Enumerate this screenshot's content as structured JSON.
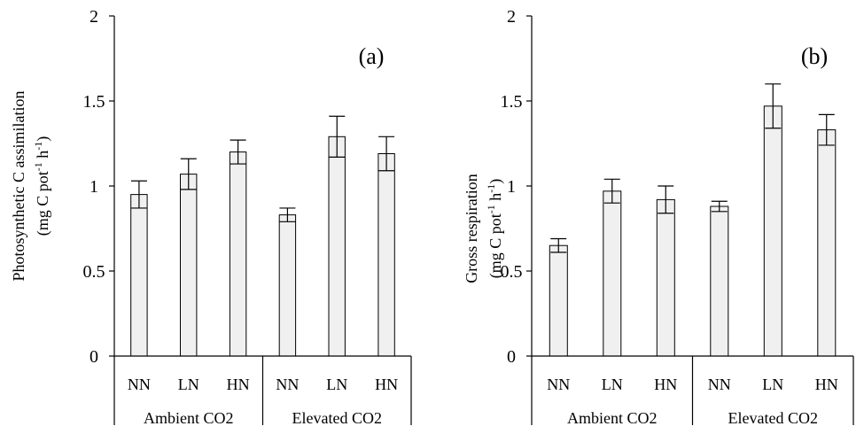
{
  "chart_data": [
    {
      "type": "bar",
      "panel_label": "(a)",
      "ylabel_main": "Photosynthetic C assimilation",
      "ylabel_unit_parts": [
        "(mg C pot",
        "-1",
        " h",
        "-1",
        ")"
      ],
      "ylim": [
        0,
        2
      ],
      "yticks": [
        "0",
        "0.5",
        "1",
        "1.5",
        "2"
      ],
      "ytick_values": [
        0,
        0.5,
        1,
        1.5,
        2
      ],
      "categories": [
        "NN",
        "LN",
        "HN",
        "NN",
        "LN",
        "HN"
      ],
      "groups": [
        {
          "label": "Ambient CO2",
          "count": 3
        },
        {
          "label": "Elevated CO2",
          "count": 3
        }
      ],
      "values": [
        0.95,
        1.07,
        1.2,
        0.83,
        1.29,
        1.19
      ],
      "errors": [
        0.08,
        0.09,
        0.07,
        0.04,
        0.12,
        0.1
      ],
      "bar_color": "#f0f0f0"
    },
    {
      "type": "bar",
      "panel_label": "(b)",
      "ylabel_main": "Gross respiration ",
      "ylabel_unit_parts": [
        "(mg C pot",
        "-1",
        " h",
        "-1",
        ")"
      ],
      "ylim": [
        0,
        2
      ],
      "yticks": [
        "0",
        "0.5",
        "1",
        "1.5",
        "2"
      ],
      "ytick_values": [
        0,
        0.5,
        1,
        1.5,
        2
      ],
      "categories": [
        "NN",
        "LN",
        "HN",
        "NN",
        "LN",
        "HN"
      ],
      "groups": [
        {
          "label": "Ambient CO2",
          "count": 3
        },
        {
          "label": "Elevated CO2",
          "count": 3
        }
      ],
      "values": [
        0.65,
        0.97,
        0.92,
        0.88,
        1.47,
        1.33
      ],
      "errors": [
        0.04,
        0.07,
        0.08,
        0.03,
        0.13,
        0.09
      ],
      "bar_color": "#f0f0f0"
    }
  ]
}
